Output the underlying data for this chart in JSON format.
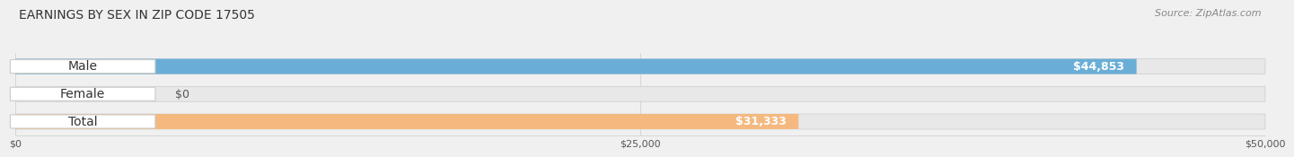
{
  "title": "EARNINGS BY SEX IN ZIP CODE 17505",
  "source": "Source: ZipAtlas.com",
  "categories": [
    "Male",
    "Female",
    "Total"
  ],
  "values": [
    44853,
    0,
    31333
  ],
  "bar_colors": [
    "#6aaed6",
    "#f4a0b5",
    "#f5b97f"
  ],
  "value_labels": [
    "$44,853",
    "$0",
    "$31,333"
  ],
  "xlim": [
    0,
    50000
  ],
  "xticks": [
    0,
    25000,
    50000
  ],
  "xticklabels": [
    "$0",
    "$25,000",
    "$50,000"
  ],
  "bar_height": 0.55,
  "background_color": "#f0f0f0",
  "title_fontsize": 10,
  "label_fontsize": 10,
  "value_fontsize": 9,
  "source_fontsize": 8
}
